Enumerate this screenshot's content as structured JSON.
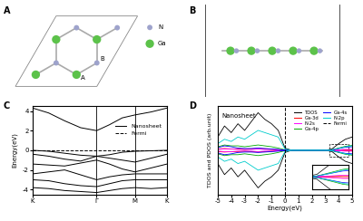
{
  "panel_labels": [
    "A",
    "B",
    "C",
    "D"
  ],
  "structure_top": {
    "species": [
      {
        "label": "N",
        "color": "#9ea3cc"
      },
      {
        "label": "Ga",
        "color": "#5cc24a"
      }
    ],
    "site_labels": [
      "B",
      "A"
    ]
  },
  "structure_side": {
    "species": [
      {
        "label": "N",
        "color": "#9ea3cc"
      },
      {
        "label": "Ga",
        "color": "#5cc24a"
      }
    ]
  },
  "chart_data": [
    {
      "type": "line",
      "x": [
        0,
        0.25,
        0.5,
        0.75,
        1,
        1.2,
        1.4,
        1.6,
        1.85,
        2.1
      ],
      "xlim": [
        0,
        2.1
      ],
      "xticks": [
        {
          "value": 0,
          "label": "K"
        },
        {
          "value": 1,
          "label": "Γ"
        },
        {
          "value": 1.6,
          "label": "M"
        },
        {
          "value": 2.1,
          "label": "K"
        }
      ],
      "ylim": [
        -4.5,
        4.5
      ],
      "yticks": [
        -4,
        -2,
        0,
        2,
        4
      ],
      "y_label": "Energy(eV)",
      "grid": "x",
      "legend": "upper right",
      "series": [
        {
          "name": "Nanosheet",
          "color": "#000000",
          "line_style": "solid",
          "bands": [
            [
              4.3,
              3.8,
              3.0,
              2.3,
              2.0,
              2.6,
              3.3,
              3.6,
              3.9,
              4.3
            ],
            [
              0.0,
              -0.1,
              -0.3,
              -0.5,
              -0.6,
              -0.45,
              -0.2,
              -0.1,
              -0.05,
              0.0
            ],
            [
              -0.4,
              -0.6,
              -0.9,
              -1.1,
              -0.6,
              -0.8,
              -1.0,
              -1.2,
              -0.8,
              -0.4
            ],
            [
              -1.4,
              -1.5,
              -1.6,
              -1.3,
              -1.0,
              -1.4,
              -1.9,
              -2.2,
              -1.8,
              -1.4
            ],
            [
              -2.4,
              -2.2,
              -2.0,
              -2.5,
              -3.0,
              -2.7,
              -2.5,
              -2.4,
              -2.4,
              -2.4
            ],
            [
              -3.0,
              -3.1,
              -3.4,
              -3.6,
              -3.7,
              -3.4,
              -3.1,
              -3.0,
              -3.0,
              -3.0
            ],
            [
              -3.8,
              -3.9,
              -4.1,
              -4.2,
              -4.3,
              -4.1,
              -3.9,
              -3.8,
              -3.9,
              -3.8
            ]
          ]
        },
        {
          "name": "Fermi",
          "color": "#000000",
          "line_style": "dashed",
          "values": [
            0,
            0,
            0,
            0,
            0,
            0,
            0,
            0,
            0,
            0
          ]
        }
      ]
    },
    {
      "type": "line",
      "annotations": [
        "Nanosheet"
      ],
      "x": [
        -5,
        -4.5,
        -4,
        -3.5,
        -3,
        -2.5,
        -2,
        -1.5,
        -1,
        -0.5,
        0,
        0.5,
        1,
        1.5,
        2,
        2.5,
        3,
        3.5,
        4,
        4.5,
        5
      ],
      "xlim": [
        -5,
        5
      ],
      "xticks": [
        -5,
        -4,
        -3,
        -2,
        -1,
        0,
        1,
        2,
        3,
        4,
        5
      ],
      "ylim": [
        -10,
        10
      ],
      "yticks": [],
      "tick_labels": "x",
      "x_label": "Energy(eV)",
      "y_label": "TDOS and PDOS (arb.unit)",
      "legend": "upper right",
      "inset": {
        "xlim": [
          3.3,
          4.7
        ],
        "ylim": [
          -1.5,
          1.5
        ]
      },
      "series": [
        {
          "name": "TDOS",
          "color": "#000000",
          "line_style": "solid",
          "values": [
            3.0,
            5.5,
            4.0,
            6.0,
            4.5,
            6.5,
            8.5,
            7.0,
            6.0,
            4.5,
            0.5,
            0,
            0,
            0,
            0,
            0,
            0,
            0.3,
            1.5,
            2.5,
            3.0
          ],
          "values_down": [
            -3.0,
            -5.5,
            -4.0,
            -6.0,
            -4.5,
            -6.5,
            -8.5,
            -7.0,
            -6.0,
            -4.5,
            -0.5,
            0,
            0,
            0,
            0,
            0,
            0,
            -0.3,
            -1.5,
            -2.5,
            -3.0
          ]
        },
        {
          "name": "Ga-3d",
          "color": "#ff0000",
          "line_style": "solid",
          "values": [
            0.3,
            0.4,
            0.3,
            0.3,
            0.2,
            0.3,
            0.4,
            0.3,
            0.2,
            0.1,
            0,
            0,
            0,
            0,
            0,
            0,
            0,
            0,
            0.05,
            0.1,
            0.1
          ],
          "values_down": [
            -0.3,
            -0.4,
            -0.3,
            -0.3,
            -0.2,
            -0.3,
            -0.4,
            -0.3,
            -0.2,
            -0.1,
            0,
            0,
            0,
            0,
            0,
            0,
            0,
            0,
            -0.05,
            -0.1,
            -0.1
          ]
        },
        {
          "name": "N-2s",
          "color": "#ff00ff",
          "line_style": "solid",
          "values": [
            0.2,
            0.3,
            0.3,
            0.2,
            0.2,
            0.2,
            0.3,
            0.2,
            0.2,
            0.1,
            0,
            0,
            0,
            0,
            0,
            0,
            0,
            0.05,
            0.1,
            0.2,
            0.2
          ],
          "values_down": [
            -0.2,
            -0.3,
            -0.3,
            -0.2,
            -0.2,
            -0.2,
            -0.3,
            -0.2,
            -0.2,
            -0.1,
            0,
            0,
            0,
            0,
            0,
            0,
            0,
            -0.05,
            -0.1,
            -0.2,
            -0.2
          ]
        },
        {
          "name": "Ga-4p",
          "color": "#00aa00",
          "line_style": "solid",
          "values": [
            0.8,
            1.2,
            1.0,
            1.0,
            0.8,
            1.0,
            1.2,
            1.0,
            0.8,
            0.5,
            0.1,
            0,
            0,
            0,
            0,
            0,
            0,
            0.1,
            0.5,
            0.9,
            1.1
          ],
          "values_down": [
            -0.8,
            -1.2,
            -1.0,
            -1.0,
            -0.8,
            -1.0,
            -1.2,
            -1.0,
            -0.8,
            -0.5,
            -0.1,
            0,
            0,
            0,
            0,
            0,
            0,
            -0.1,
            -0.5,
            -0.9,
            -1.1
          ]
        },
        {
          "name": "Ga-4s",
          "color": "#0000ff",
          "line_style": "solid",
          "values": [
            0.6,
            1.0,
            0.8,
            0.5,
            0.4,
            0.4,
            0.5,
            0.4,
            0.3,
            0.2,
            0.05,
            0,
            0,
            0,
            0,
            0,
            0,
            0.1,
            0.4,
            0.7,
            0.8
          ],
          "values_down": [
            -0.6,
            -1.0,
            -0.8,
            -0.5,
            -0.4,
            -0.4,
            -0.5,
            -0.4,
            -0.3,
            -0.2,
            -0.05,
            0,
            0,
            0,
            0,
            0,
            0,
            -0.1,
            -0.4,
            -0.7,
            -0.8
          ]
        },
        {
          "name": "N-2p",
          "color": "#00cccc",
          "line_style": "solid",
          "values": [
            1.5,
            2.5,
            2.0,
            3.0,
            2.5,
            3.5,
            4.5,
            4.0,
            3.5,
            3.0,
            0.3,
            0,
            0,
            0,
            0,
            0,
            0,
            0.1,
            0.4,
            0.8,
            1.0
          ],
          "values_down": [
            -1.5,
            -2.5,
            -2.0,
            -3.0,
            -2.5,
            -3.5,
            -4.5,
            -4.0,
            -3.5,
            -3.0,
            -0.3,
            0,
            0,
            0,
            0,
            0,
            0,
            -0.1,
            -0.4,
            -0.8,
            -1.0
          ]
        },
        {
          "name": "Fermi",
          "color": "#000000",
          "line_style": "dashed",
          "position": 0
        }
      ]
    }
  ]
}
